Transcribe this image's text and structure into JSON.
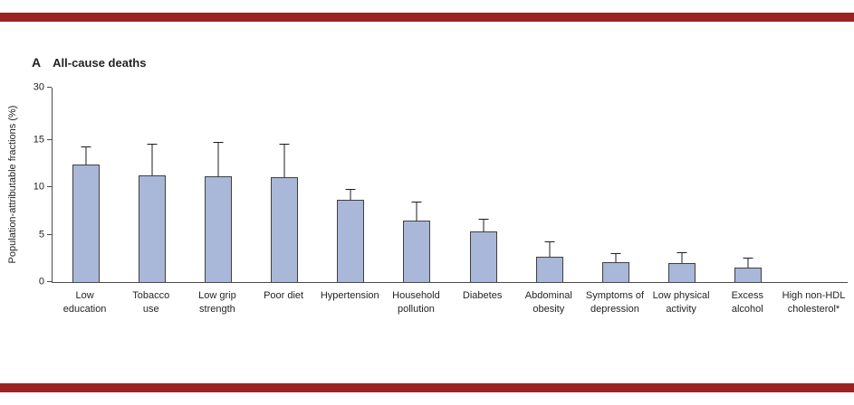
{
  "panel": {
    "letter": "A",
    "title": "All-cause deaths"
  },
  "decorations": {
    "stripe_color": "#9b2423"
  },
  "chart_data": {
    "type": "bar",
    "title": "All-cause deaths",
    "ylabel": "Population-attributable fractions (%)",
    "categories": [
      "Low\neducation",
      "Tobacco\nuse",
      "Low grip\nstrength",
      "Poor diet",
      "Hypertension",
      "Household\npollution",
      "Diabetes",
      "Abdominal\nobesity",
      "Symptoms of\ndepression",
      "Low physical\nactivity",
      "Excess\nalcohol",
      "High non-HDL\ncholesterol*"
    ],
    "series": [
      {
        "name": "Population-attributable fraction (%)",
        "values": [
          12.4,
          11.3,
          11.2,
          11.1,
          8.7,
          6.5,
          5.4,
          2.7,
          2.1,
          2.0,
          1.5,
          0
        ],
        "upper_ci": [
          14.3,
          14.6,
          14.8,
          14.6,
          9.8,
          8.5,
          6.7,
          4.3,
          3.1,
          3.2,
          2.6,
          0
        ]
      }
    ],
    "yticks": [
      0,
      5,
      10,
      15,
      30
    ],
    "ylim": [
      0,
      30
    ],
    "y_linear_max": 15,
    "grid": false,
    "legend": "none",
    "bar_color": "#a9b7d8",
    "bar_border_color": "#3f3f3f",
    "axis_color": "#4a4a4a"
  }
}
